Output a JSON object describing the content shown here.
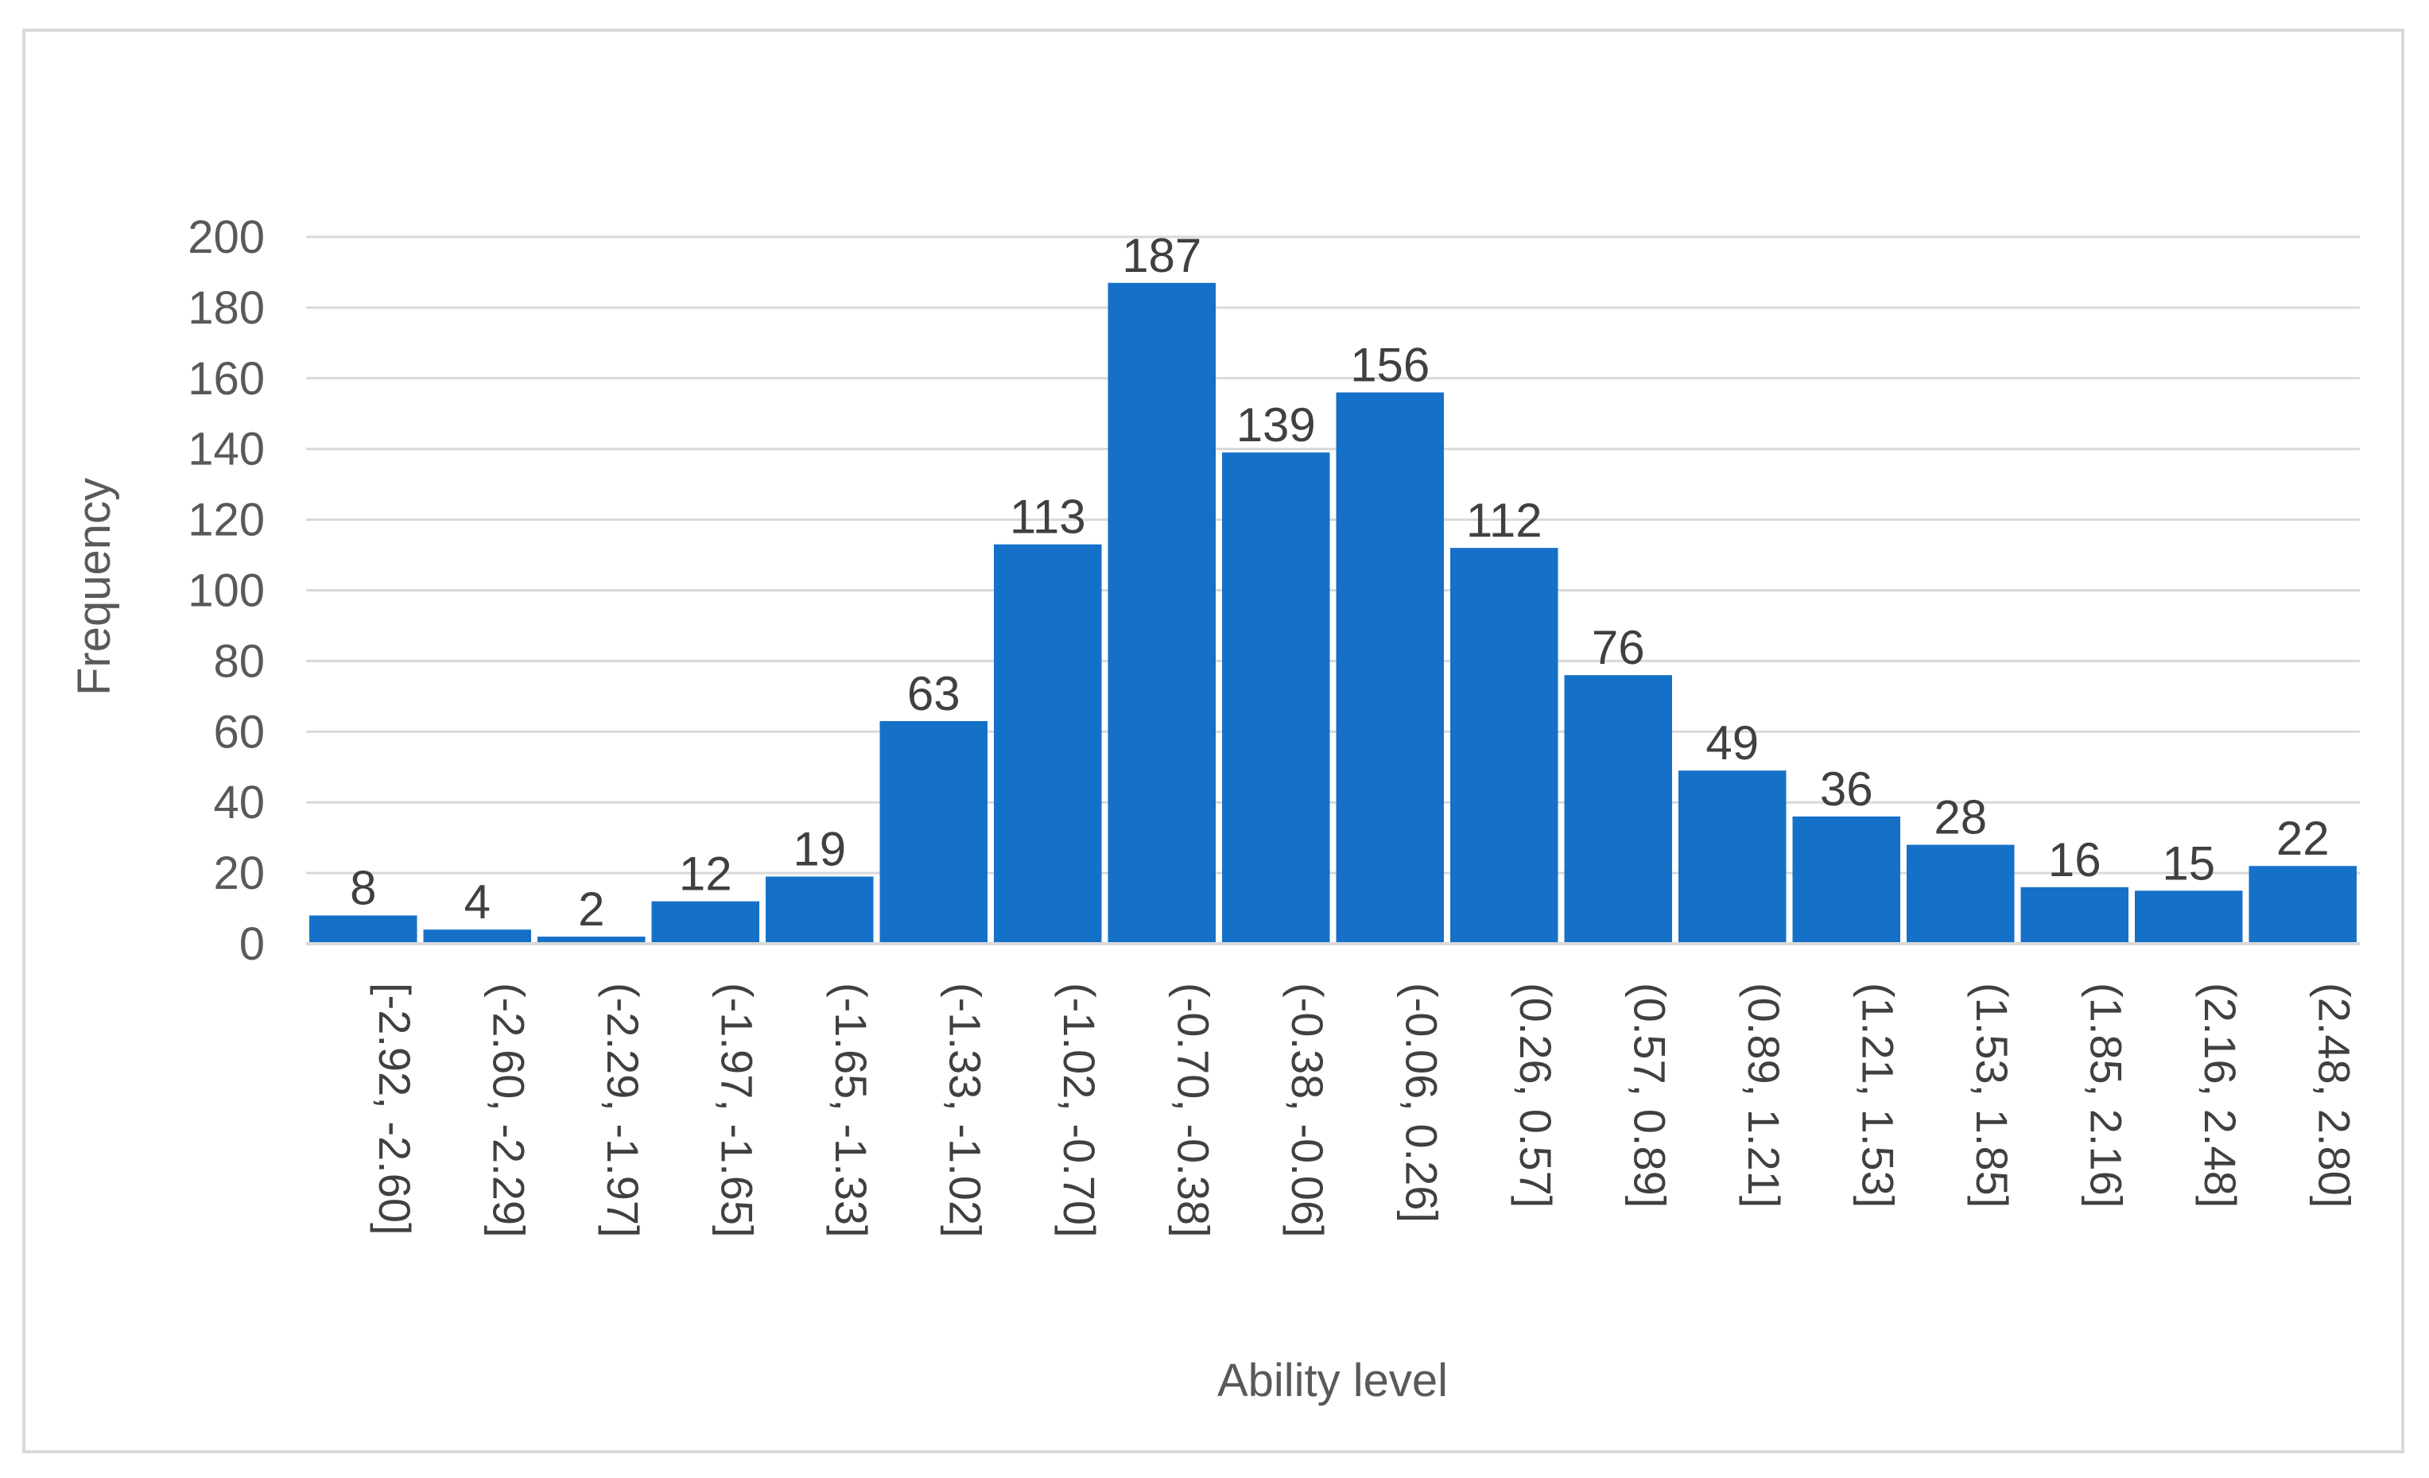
{
  "chart_data": {
    "type": "bar",
    "title": "",
    "xlabel": "Ability level",
    "ylabel": "Frequency",
    "ylim": [
      0,
      200
    ],
    "yticks": [
      "0",
      "20",
      "40",
      "60",
      "80",
      "100",
      "120",
      "140",
      "160",
      "180",
      "200"
    ],
    "grid": true,
    "legend": "none",
    "bar_color": "#1570c8",
    "categories": [
      "[-2.92, -2.60]",
      "(-2.60, -2.29]",
      "(-2.29, -1.97]",
      "(-1.97, -1.65]",
      "(-1.65, -1.33]",
      "(-1.33, -1.02]",
      "(-1.02, -0.70]",
      "(-0.70, -0.38]",
      "(-0.38, -0.06]",
      "(-0.06, 0.26]",
      "(0.26, 0.57]",
      "(0.57, 0.89]",
      "(0.89, 1.21]",
      "(1.21, 1.53]",
      "(1.53, 1.85]",
      "(1.85, 2.16]",
      "(2.16, 2.48]",
      "(2.48, 2.80]"
    ],
    "values": [
      8,
      4,
      2,
      12,
      19,
      63,
      113,
      187,
      139,
      156,
      112,
      76,
      49,
      36,
      28,
      16,
      15,
      22
    ]
  }
}
